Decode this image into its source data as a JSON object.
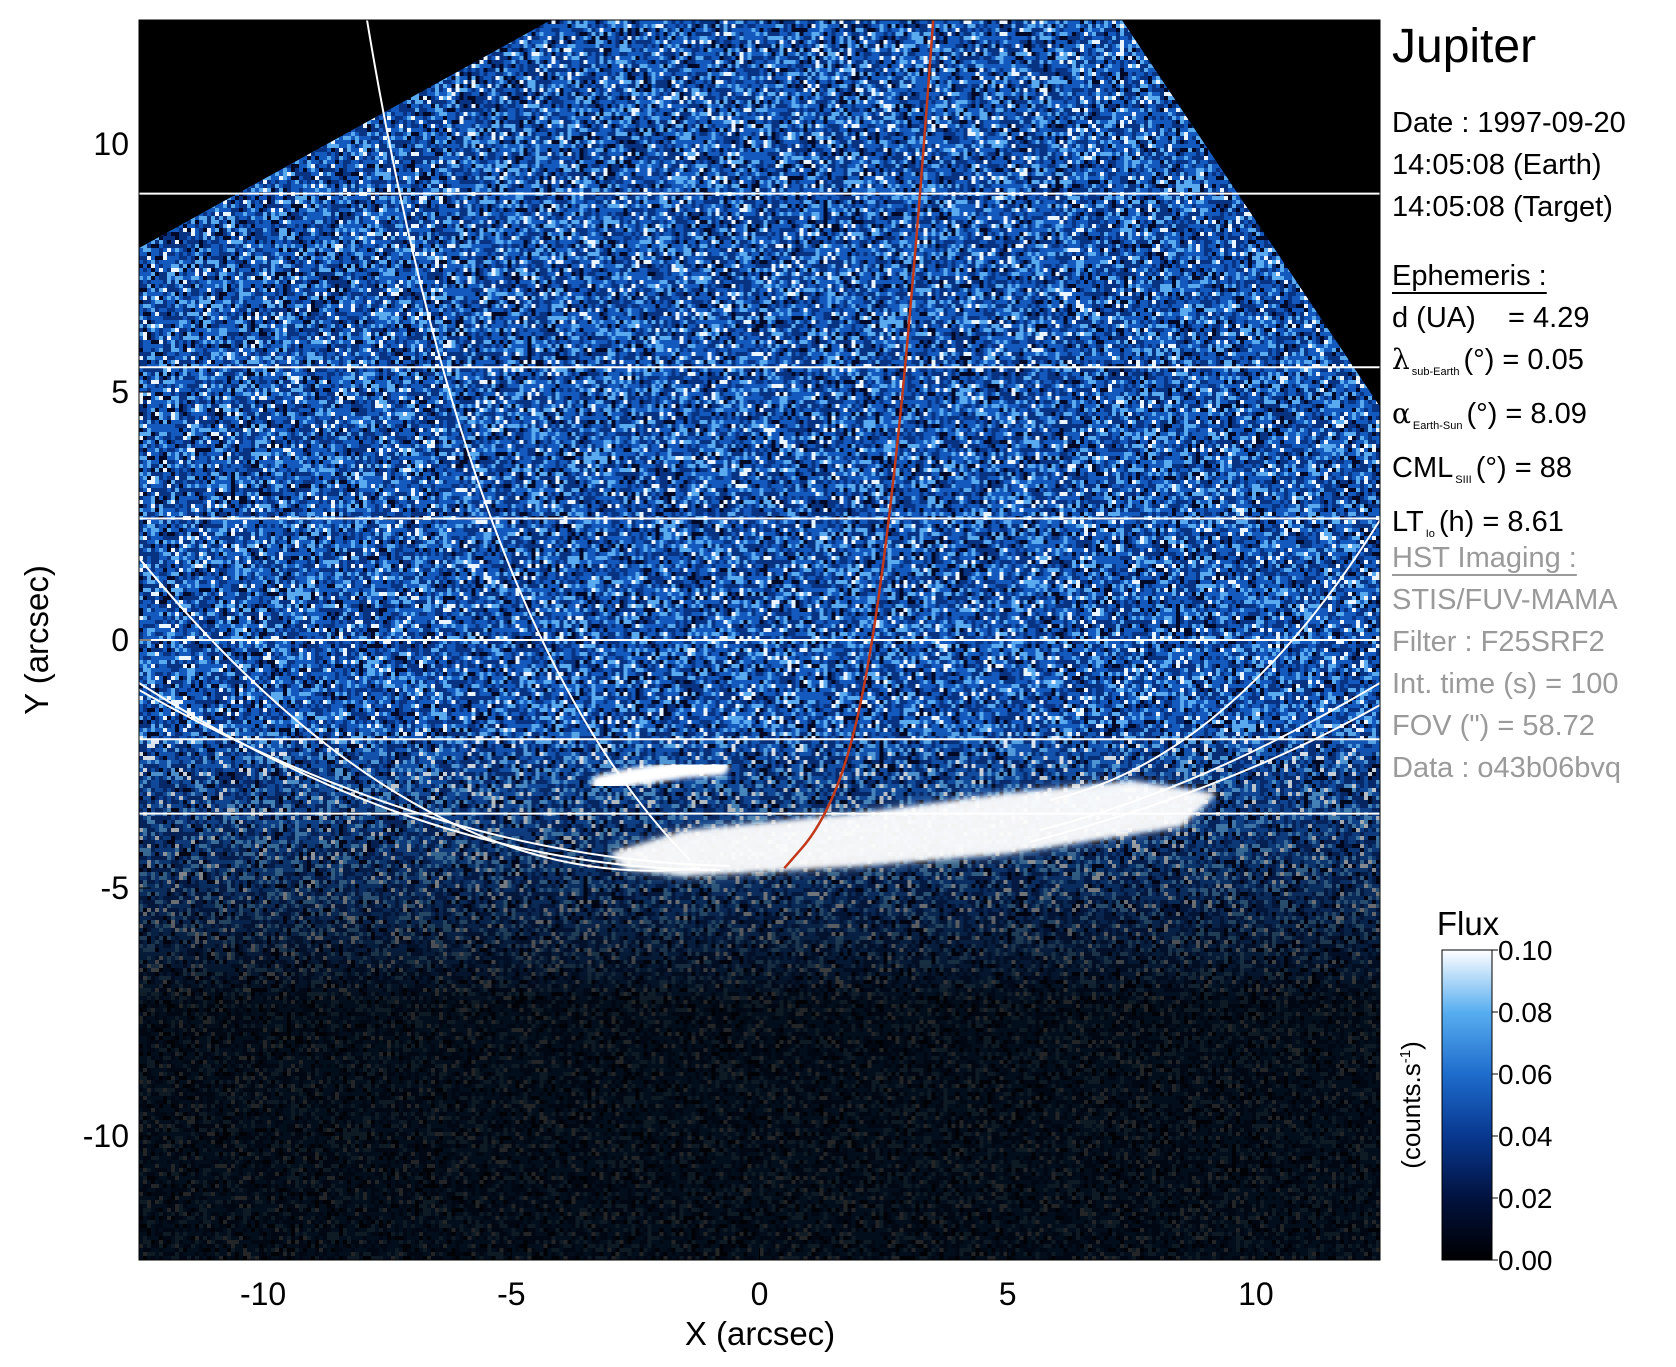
{
  "chart_data": {
    "type": "heatmap",
    "title": "Jupiter",
    "xlabel": "X (arcsec)",
    "ylabel": "Y (arcsec)",
    "xlim": [
      -12.5,
      12.5
    ],
    "ylim": [
      -12.5,
      12.5
    ],
    "x_ticks": [
      -10,
      -5,
      0,
      5,
      10
    ],
    "y_ticks": [
      -10,
      -5,
      0,
      5,
      10
    ],
    "x_tick_labels": [
      "-10",
      "-5",
      "0",
      "5",
      "10"
    ],
    "y_tick_labels": [
      "-10",
      "-5",
      "0",
      "5",
      "10"
    ],
    "colorbar": {
      "title": "Flux",
      "unit_label": "(counts.s",
      "unit_exp": "-1",
      "unit_close": ")",
      "range": [
        0.0,
        0.1
      ],
      "ticks": [
        0.0,
        0.02,
        0.04,
        0.06,
        0.08,
        0.1
      ],
      "tick_labels": [
        "0.00",
        "0.02",
        "0.04",
        "0.06",
        "0.08",
        "0.10"
      ],
      "colors": [
        "#000000",
        "#02123f",
        "#08388f",
        "#1e6ccc",
        "#58aef0",
        "#ffffff"
      ]
    },
    "image_footprint_corners": [
      [
        -12.5,
        7.9
      ],
      [
        -4.2,
        12.5
      ],
      [
        7.3,
        12.5
      ],
      [
        12.5,
        4.7
      ],
      [
        12.5,
        -12.5
      ],
      [
        -12.5,
        -12.5
      ]
    ],
    "latitude_lines_y": [
      9.0,
      5.5,
      2.45,
      0.0,
      -2.0,
      -3.5
    ],
    "reference_line_color": "#ffffff",
    "io_footprint": {
      "color": "#c2391b",
      "points": [
        [
          0.5,
          -4.6
        ],
        [
          1.2,
          -3.8
        ],
        [
          1.8,
          -2.4
        ],
        [
          2.3,
          0.0
        ],
        [
          2.8,
          4.0
        ],
        [
          3.2,
          8.5
        ],
        [
          3.5,
          12.5
        ]
      ]
    },
    "auroral_oval": {
      "main_emission": [
        [
          -3.0,
          -4.3
        ],
        [
          -1.5,
          -3.85
        ],
        [
          2.0,
          -3.5
        ],
        [
          5.0,
          -3.1
        ],
        [
          7.5,
          -2.85
        ],
        [
          9.2,
          -3.1
        ],
        [
          8.5,
          -3.75
        ],
        [
          5.0,
          -4.3
        ],
        [
          2.0,
          -4.55
        ],
        [
          -1.5,
          -4.75
        ],
        [
          -2.7,
          -4.6
        ]
      ],
      "arc": [
        [
          -3.2,
          -2.9
        ],
        [
          -2.5,
          -2.75
        ],
        [
          -1.5,
          -2.6
        ],
        [
          -0.8,
          -2.55
        ]
      ],
      "color": "#ffffff"
    }
  },
  "header": {
    "date_line": "Date : 1997-09-20",
    "earth_time": "14:05:08 (Earth)",
    "target_time": "14:05:08 (Target)"
  },
  "ephemeris": {
    "heading": "Ephemeris :",
    "distance": "d (UA)    = 4.29",
    "lambda_symbol": "λ",
    "lambda_sub": "sub-Earth",
    "lambda_value": "(°) = 0.05",
    "alpha_symbol": "α",
    "alpha_sub": "Earth-Sun",
    "alpha_value": "(°) = 8.09",
    "cml_label": "CML",
    "cml_sub": "SIII",
    "cml_value": "(°) = 88",
    "lt_label": "LT",
    "lt_sub": "Io",
    "lt_value": "(h) = 8.61"
  },
  "imaging": {
    "heading": "HST Imaging :",
    "instrument": "STIS/FUV-MAMA",
    "filter": "Filter : F25SRF2",
    "int_time": "Int. time (s) = 100",
    "fov": "FOV (\") = 58.72",
    "data_id": "Data : o43b06bvq"
  }
}
